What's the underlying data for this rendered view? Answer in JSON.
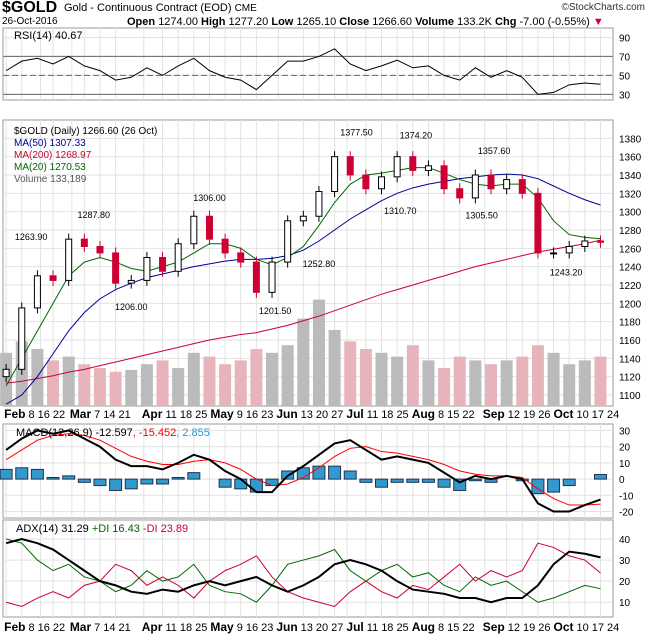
{
  "header": {
    "symbol": "$GOLD",
    "name": "Gold - Continuous Contract (EOD)",
    "exchange": "CME",
    "copyright": "©StockCharts.com",
    "date": "26-Oct-2016",
    "open_label": "Open",
    "open": "1274.00",
    "high_label": "High",
    "high": "1277.20",
    "low_label": "Low",
    "low": "1265.10",
    "close_label": "Close",
    "close": "1266.60",
    "volume_label": "Volume",
    "volume": "133.2K",
    "chg_label": "Chg",
    "chg": "-7.00 (-0.55%)",
    "down_color": "#cc0033"
  },
  "chart_data": [
    {
      "type": "line",
      "panel": "rsi",
      "legend": "RSI(14) 40.67",
      "ylim": [
        24,
        100
      ],
      "yticks": [
        90,
        70,
        50,
        30
      ],
      "reference_lines": [
        70,
        50,
        30
      ],
      "color": "#000000",
      "fill_above_70": "#336633"
    },
    {
      "type": "candlestick",
      "panel": "price",
      "legend": [
        "$GOLD (Daily) 1266.60 (26 Oct)",
        "MA(50) 1307.33",
        "MA(200) 1268.97",
        "MA(20) 1270.53",
        "Volume 133,189"
      ],
      "legend_colors": [
        "#000000",
        "#000099",
        "#cc0033",
        "#006600",
        "#555555"
      ],
      "ylim": [
        1088,
        1400
      ],
      "yticks": [
        1100,
        1120,
        1140,
        1160,
        1180,
        1200,
        1220,
        1240,
        1260,
        1280,
        1300,
        1320,
        1340,
        1360,
        1380
      ],
      "grid": true,
      "x": [
        "2016-02-01",
        "2016-02-08",
        "2016-02-15",
        "2016-02-22",
        "2016-02-29",
        "2016-03-07",
        "2016-03-14",
        "2016-03-21",
        "2016-03-28",
        "2016-04-04",
        "2016-04-11",
        "2016-04-18",
        "2016-04-25",
        "2016-05-02",
        "2016-05-09",
        "2016-05-16",
        "2016-05-23",
        "2016-05-30",
        "2016-06-06",
        "2016-06-13",
        "2016-06-20",
        "2016-06-27",
        "2016-07-04",
        "2016-07-11",
        "2016-07-18",
        "2016-07-25",
        "2016-08-01",
        "2016-08-08",
        "2016-08-15",
        "2016-08-22",
        "2016-08-29",
        "2016-09-05",
        "2016-09-12",
        "2016-09-19",
        "2016-09-26",
        "2016-10-03",
        "2016-10-10",
        "2016-10-17",
        "2016-10-24"
      ],
      "close": [
        1128,
        1195,
        1230,
        1225,
        1270,
        1262,
        1255,
        1222,
        1225,
        1250,
        1235,
        1265,
        1295,
        1270,
        1255,
        1245,
        1212,
        1245,
        1290,
        1295,
        1322,
        1360,
        1340,
        1325,
        1338,
        1360,
        1345,
        1350,
        1325,
        1315,
        1340,
        1325,
        1335,
        1320,
        1255,
        1255,
        1262,
        1268,
        1266.6
      ],
      "ma20": [
        1110,
        1140,
        1170,
        1200,
        1230,
        1245,
        1250,
        1245,
        1238,
        1235,
        1240,
        1245,
        1255,
        1265,
        1265,
        1260,
        1248,
        1242,
        1250,
        1262,
        1285,
        1310,
        1330,
        1340,
        1342,
        1345,
        1348,
        1348,
        1342,
        1335,
        1330,
        1328,
        1330,
        1330,
        1315,
        1290,
        1275,
        1272,
        1270.5
      ],
      "ma50": [
        1090,
        1100,
        1120,
        1145,
        1170,
        1190,
        1205,
        1215,
        1222,
        1228,
        1232,
        1236,
        1240,
        1243,
        1246,
        1248,
        1248,
        1249,
        1252,
        1258,
        1268,
        1280,
        1292,
        1302,
        1312,
        1320,
        1326,
        1330,
        1333,
        1336,
        1338,
        1340,
        1341,
        1340,
        1336,
        1328,
        1320,
        1313,
        1307.3
      ],
      "ma200": [
        1113,
        1115,
        1118,
        1121,
        1125,
        1128,
        1132,
        1136,
        1140,
        1144,
        1148,
        1152,
        1156,
        1160,
        1163,
        1166,
        1168,
        1172,
        1176,
        1181,
        1186,
        1192,
        1198,
        1204,
        1210,
        1215,
        1220,
        1225,
        1230,
        1235,
        1240,
        1244,
        1248,
        1252,
        1256,
        1259,
        1262,
        1265,
        1269
      ],
      "volume_k": [
        140,
        170,
        150,
        120,
        130,
        110,
        100,
        90,
        95,
        110,
        120,
        100,
        140,
        130,
        110,
        120,
        150,
        140,
        160,
        230,
        280,
        200,
        170,
        150,
        140,
        130,
        160,
        120,
        100,
        130,
        120,
        110,
        120,
        130,
        160,
        140,
        110,
        120,
        130
      ],
      "rsi": [
        55,
        65,
        68,
        62,
        70,
        60,
        55,
        45,
        48,
        58,
        50,
        60,
        68,
        55,
        48,
        45,
        35,
        50,
        65,
        65,
        70,
        78,
        62,
        55,
        60,
        66,
        58,
        60,
        50,
        45,
        58,
        48,
        55,
        48,
        30,
        32,
        40,
        42,
        40.67
      ],
      "annotations": [
        {
          "date": "2016-02-11",
          "text": "1263.90",
          "position": "above"
        },
        {
          "date": "2016-03-10",
          "text": "1287.80",
          "position": "above"
        },
        {
          "date": "2016-03-28",
          "text": "1206.00",
          "position": "below"
        },
        {
          "date": "2016-05-02",
          "text": "1306.00",
          "position": "above"
        },
        {
          "date": "2016-05-31",
          "text": "1201.50",
          "position": "below"
        },
        {
          "date": "2016-06-20",
          "text": "1252.80",
          "position": "below"
        },
        {
          "date": "2016-07-06",
          "text": "1377.50",
          "position": "above"
        },
        {
          "date": "2016-07-26",
          "text": "1310.70",
          "position": "below"
        },
        {
          "date": "2016-08-02",
          "text": "1374.20",
          "position": "above"
        },
        {
          "date": "2016-08-31",
          "text": "1305.50",
          "position": "below"
        },
        {
          "date": "2016-09-06",
          "text": "1357.60",
          "position": "above"
        },
        {
          "date": "2016-10-07",
          "text": "1243.20",
          "position": "below"
        }
      ]
    },
    {
      "type": "line",
      "panel": "macd",
      "legend": "MACD(12,26,9)",
      "values_text": [
        "-12.597",
        ", -15.452",
        ", 2.855"
      ],
      "value_colors": [
        "#000000",
        "#ff0000",
        "#3399cc"
      ],
      "ylim": [
        -24,
        34
      ],
      "yticks": [
        30,
        20,
        10,
        0,
        -10,
        -20
      ],
      "macd": [
        18,
        25,
        30,
        28,
        30,
        25,
        20,
        12,
        8,
        8,
        6,
        10,
        15,
        12,
        5,
        0,
        -8,
        -8,
        2,
        8,
        15,
        22,
        24,
        18,
        12,
        14,
        12,
        10,
        4,
        -2,
        2,
        0,
        2,
        0,
        -15,
        -20,
        -20,
        -16,
        -12.6
      ],
      "signal": [
        12,
        18,
        24,
        27,
        28,
        27,
        24,
        19,
        14,
        11,
        9,
        9,
        11,
        12,
        10,
        6,
        0,
        -4,
        -3,
        1,
        7,
        14,
        19,
        20,
        17,
        16,
        14,
        12,
        9,
        5,
        3,
        2,
        2,
        1,
        -6,
        -12,
        -16,
        -16,
        -15.45
      ]
    },
    {
      "type": "line",
      "panel": "adx",
      "legend": "ADX(14) 31.29",
      "plus_di_text": "+DI 16.43",
      "minus_di_text": "-DI 23.89",
      "ylim": [
        3,
        49
      ],
      "yticks": [
        40,
        30,
        20,
        10
      ],
      "adx": [
        38,
        40,
        38,
        35,
        30,
        25,
        20,
        18,
        15,
        14,
        16,
        15,
        18,
        20,
        18,
        20,
        22,
        18,
        15,
        18,
        22,
        28,
        30,
        28,
        25,
        20,
        16,
        15,
        14,
        12,
        12,
        10,
        12,
        12,
        18,
        28,
        34,
        33,
        31.29
      ],
      "plus_di": [
        40,
        38,
        30,
        25,
        28,
        22,
        20,
        15,
        18,
        25,
        20,
        22,
        28,
        18,
        15,
        14,
        10,
        18,
        28,
        30,
        32,
        35,
        25,
        20,
        25,
        28,
        22,
        24,
        18,
        15,
        22,
        18,
        20,
        15,
        10,
        12,
        15,
        18,
        16.43
      ],
      "minus_di": [
        10,
        8,
        12,
        15,
        12,
        18,
        20,
        28,
        25,
        18,
        22,
        18,
        12,
        20,
        25,
        28,
        32,
        22,
        15,
        12,
        10,
        8,
        15,
        20,
        15,
        12,
        18,
        16,
        22,
        28,
        20,
        25,
        22,
        25,
        38,
        36,
        32,
        30,
        23.89
      ]
    }
  ],
  "x_axis": {
    "ticks": [
      {
        "date": "2016-02-01",
        "label": "Feb",
        "month": true
      },
      {
        "date": "2016-02-08",
        "label": "8"
      },
      {
        "date": "2016-02-16",
        "label": "16"
      },
      {
        "date": "2016-02-22",
        "label": "22"
      },
      {
        "date": "2016-03-01",
        "label": "Mar",
        "month": true
      },
      {
        "date": "2016-03-07",
        "label": "7"
      },
      {
        "date": "2016-03-14",
        "label": "14"
      },
      {
        "date": "2016-03-21",
        "label": "21"
      },
      {
        "date": "2016-04-01",
        "label": "Apr",
        "month": true
      },
      {
        "date": "2016-04-11",
        "label": "11"
      },
      {
        "date": "2016-04-18",
        "label": "18"
      },
      {
        "date": "2016-04-25",
        "label": "25"
      },
      {
        "date": "2016-05-02",
        "label": "May",
        "month": true
      },
      {
        "date": "2016-05-09",
        "label": "9"
      },
      {
        "date": "2016-05-16",
        "label": "16"
      },
      {
        "date": "2016-05-23",
        "label": "23"
      },
      {
        "date": "2016-06-01",
        "label": "Jun",
        "month": true
      },
      {
        "date": "2016-06-13",
        "label": "13"
      },
      {
        "date": "2016-06-20",
        "label": "20"
      },
      {
        "date": "2016-06-27",
        "label": "27"
      },
      {
        "date": "2016-07-01",
        "label": "Jul",
        "month": true
      },
      {
        "date": "2016-07-11",
        "label": "11"
      },
      {
        "date": "2016-07-18",
        "label": "18"
      },
      {
        "date": "2016-07-25",
        "label": "25"
      },
      {
        "date": "2016-08-01",
        "label": "Aug",
        "month": true
      },
      {
        "date": "2016-08-08",
        "label": "8"
      },
      {
        "date": "2016-08-15",
        "label": "15"
      },
      {
        "date": "2016-08-22",
        "label": "22"
      },
      {
        "date": "2016-09-01",
        "label": "Sep",
        "month": true
      },
      {
        "date": "2016-09-12",
        "label": "12"
      },
      {
        "date": "2016-09-19",
        "label": "19"
      },
      {
        "date": "2016-09-26",
        "label": "26"
      },
      {
        "date": "2016-10-03",
        "label": "Oct",
        "month": true
      },
      {
        "date": "2016-10-10",
        "label": "10"
      },
      {
        "date": "2016-10-17",
        "label": "17"
      },
      {
        "date": "2016-10-24",
        "label": "24"
      }
    ]
  }
}
